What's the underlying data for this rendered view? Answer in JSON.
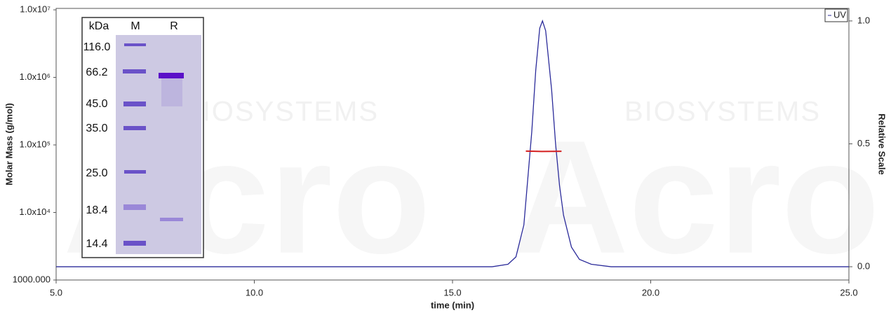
{
  "chart_data": {
    "type": "line",
    "xlabel": "time (min)",
    "ylabel": "Molar Mass (g/mol)",
    "y2label": "Relative Scale",
    "xlim": [
      5,
      25
    ],
    "xticks": [
      {
        "value": 5,
        "label": "5.0"
      },
      {
        "value": 10,
        "label": "10.0"
      },
      {
        "value": 15,
        "label": "15.0"
      },
      {
        "value": 20,
        "label": "20.0"
      },
      {
        "value": 25,
        "label": "25.0"
      }
    ],
    "ylim": [
      1000,
      10500000
    ],
    "log_y": true,
    "yticks": [
      {
        "value": 1000,
        "label": "1000.000"
      },
      {
        "value": 10000,
        "label": "1.0x10⁴"
      },
      {
        "value": 100000,
        "label": "1.0x10⁵"
      },
      {
        "value": 1000000,
        "label": "1.0x10⁶"
      },
      {
        "value": 10000000,
        "label": "1.0x10⁷"
      }
    ],
    "y2lim": [
      -0.054,
      1.051
    ],
    "y2ticks": [
      {
        "value": 0,
        "label": "0.0"
      },
      {
        "value": 0.5,
        "label": "0.5"
      },
      {
        "value": 1,
        "label": "1.0"
      }
    ],
    "legend": "top-right",
    "series": [
      {
        "name": "UV",
        "color": "#2b2b9a",
        "axis": "y2",
        "x": [
          5,
          8,
          11,
          14,
          16,
          16.4,
          16.6,
          16.8,
          17.0,
          17.1,
          17.2,
          17.27,
          17.35,
          17.5,
          17.6,
          17.7,
          17.8,
          18.0,
          18.2,
          18.5,
          19,
          22,
          25
        ],
        "values": [
          0.0,
          0.0,
          0.0,
          0.0,
          0.0,
          0.01,
          0.04,
          0.17,
          0.55,
          0.8,
          0.97,
          1.0,
          0.96,
          0.72,
          0.5,
          0.33,
          0.21,
          0.08,
          0.03,
          0.01,
          0.0,
          0.0,
          0.0
        ]
      },
      {
        "color": "#d42020",
        "x": [
          16.85,
          17.25,
          17.75
        ],
        "values": [
          81000,
          80000,
          80500
        ]
      }
    ]
  },
  "inset": {
    "headers": [
      "kDa",
      "M",
      "R"
    ],
    "markers": [
      "116.0",
      "66.2",
      "45.0",
      "35.0",
      "25.0",
      "18.4",
      "14.4"
    ]
  },
  "watermark": {
    "logo": "Acro",
    "brand": "BIOSYSTEMS"
  }
}
